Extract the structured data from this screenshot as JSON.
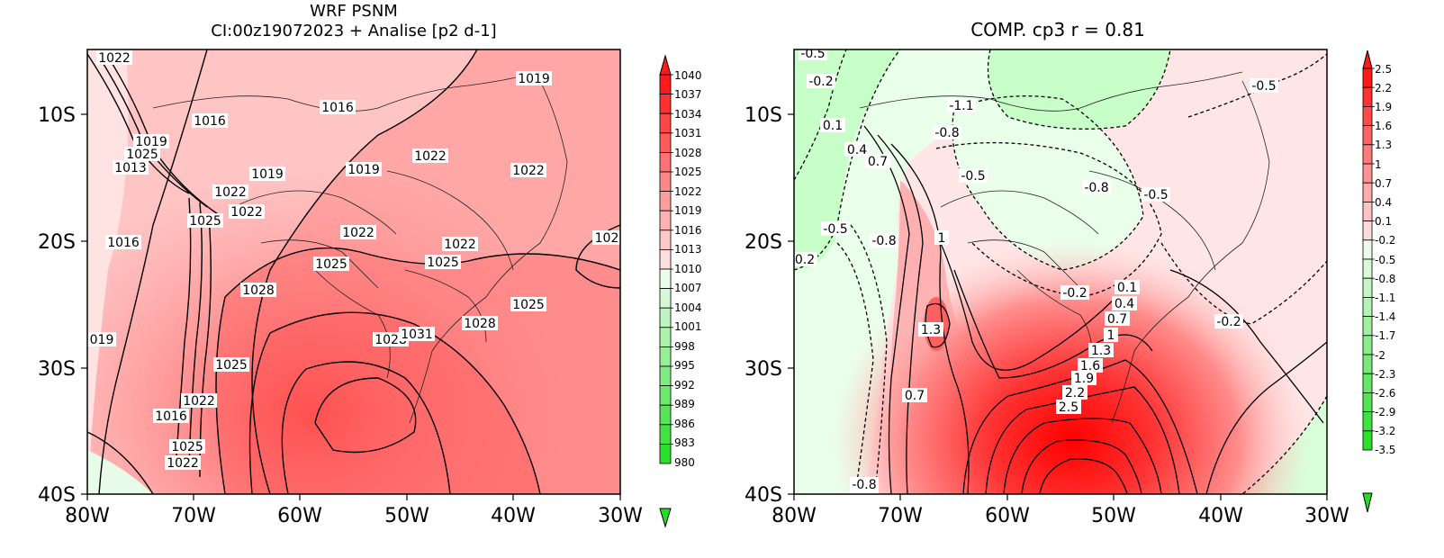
{
  "left_panel": {
    "title_line1": "WRF PSNM",
    "title_line2": "CI:00z19072023 + Analise  [p2 d-1]",
    "x_ticks": [
      "80W",
      "70W",
      "60W",
      "50W",
      "40W",
      "30W"
    ],
    "y_ticks": [
      "10S",
      "20S",
      "30S",
      "40S"
    ],
    "colorbar": {
      "labels": [
        "1040",
        "1037",
        "1034",
        "1031",
        "1028",
        "1025",
        "1022",
        "1019",
        "1016",
        "1013",
        "1010",
        "1007",
        "1004",
        "1001",
        "998",
        "995",
        "992",
        "989",
        "986",
        "983",
        "980"
      ],
      "top_color": "#ff1a1a",
      "bottom_color": "#22dd22"
    },
    "contour_labels": [
      "1022",
      "1016",
      "1016",
      "1019",
      "1019",
      "1019",
      "1019",
      "1022",
      "1025",
      "1013",
      "1022",
      "1025",
      "1022",
      "1022",
      "1016",
      "1022",
      "1022",
      "1025",
      "1025",
      "1028",
      "1025",
      "1028",
      "1028",
      "1031",
      "019",
      "1025",
      "1022",
      "1016",
      "1025",
      "1022",
      "102"
    ]
  },
  "right_panel": {
    "title": "COMP. cp3  r =  0.81",
    "x_ticks": [
      "80W",
      "70W",
      "60W",
      "50W",
      "40W",
      "30W"
    ],
    "y_ticks": [
      "10S",
      "20S",
      "30S",
      "40S"
    ],
    "colorbar": {
      "labels": [
        "2.5",
        "2.2",
        "1.9",
        "1.6",
        "1.3",
        "1",
        "0.7",
        "0.4",
        "0.1",
        "-0.2",
        "-0.5",
        "-0.8",
        "-1.1",
        "-1.4",
        "-1.7",
        "-2",
        "-2.3",
        "-2.6",
        "-2.9",
        "-3.2",
        "-3.5"
      ],
      "top_color": "#ff1a1a",
      "bottom_color": "#22dd22"
    },
    "contour_labels": [
      "-0.5",
      "-0.2",
      "-1.1",
      "-0.8",
      "0.1",
      "0.4",
      "0.7",
      "-0.5",
      "-0.8",
      "-0.5",
      "-0.5",
      "-0.5",
      "-0.8",
      "1",
      "0.2",
      "-0.2",
      "0.1",
      "0.4",
      "0.7",
      "1",
      "1.3",
      "1.6",
      "1.9",
      "2.2",
      "2.5",
      "1.3",
      "0.7",
      "-0.2",
      "-0.8",
      "-0.5"
    ]
  }
}
